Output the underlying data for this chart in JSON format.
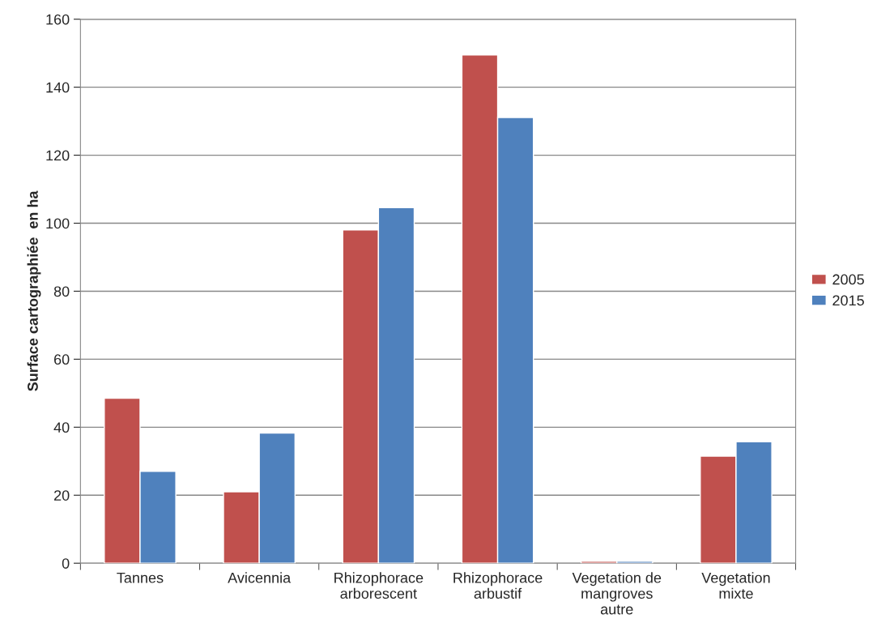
{
  "chart_data": {
    "type": "bar",
    "ylabel": "Surface cartographiée  en ha",
    "categories": [
      "Tannes",
      "Avicennia",
      "Rhizophorace\narborescent",
      "Rhizophorace\narbustif",
      "Vegetation de\nmangroves\nautre",
      "Vegetation\nmixte"
    ],
    "series": [
      {
        "name": "2005",
        "color": "#c0504d",
        "values": [
          48.5,
          21,
          98,
          149.5,
          0.6,
          31.5
        ]
      },
      {
        "name": "2015",
        "color": "#4f81bd",
        "values": [
          27,
          38.3,
          104.6,
          131.1,
          0.6,
          35.7
        ]
      }
    ],
    "ylim": [
      0,
      160
    ],
    "yticks": [
      0,
      20,
      40,
      60,
      80,
      100,
      120,
      140,
      160
    ],
    "grid": "y",
    "legend": "right"
  }
}
